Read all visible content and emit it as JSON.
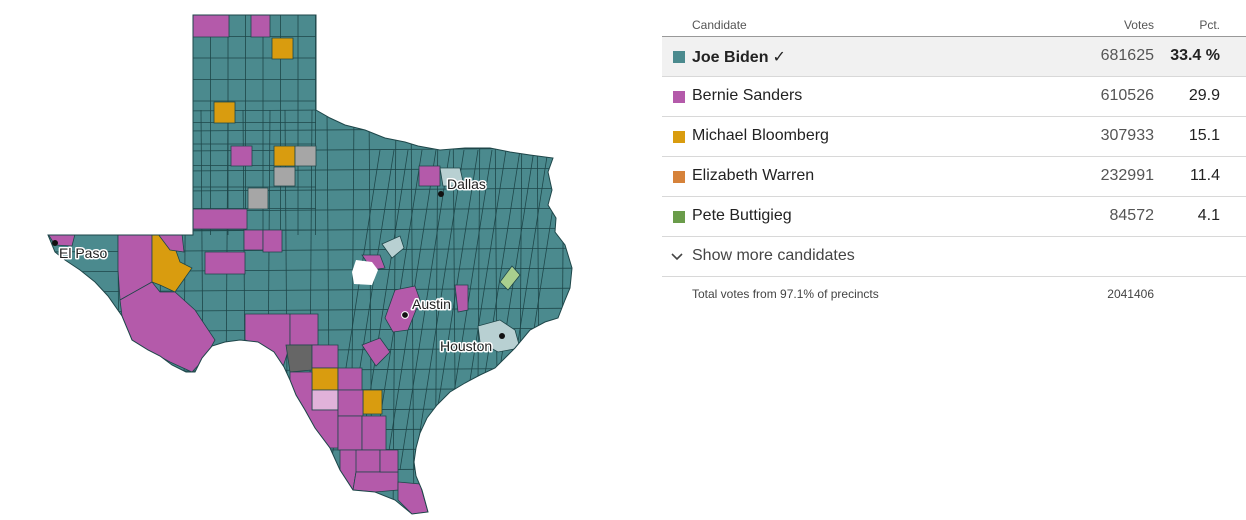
{
  "colors": {
    "biden": "#4b8a8e",
    "sanders": "#b45aaa",
    "bloomberg": "#d99c0f",
    "warren": "#d6823a",
    "buttigieg": "#6a9c4a",
    "biden_light": "#b8d0d2",
    "sanders_light": "#e1b2da",
    "buttigieg_light": "#a9cf8e",
    "tie": "#a6a6a6",
    "no_results": "#666666",
    "county_border": "#1e4649"
  },
  "map": {
    "cities": [
      "El Paso",
      "Dallas",
      "Austin",
      "Houston"
    ]
  },
  "table": {
    "headers": {
      "candidate": "Candidate",
      "votes": "Votes",
      "pct": "Pct."
    },
    "candidates": [
      {
        "name": "Joe Biden",
        "votes": "681625",
        "pct": "33.4 %",
        "color": "#4b8a8e",
        "winner": true,
        "check": "✓"
      },
      {
        "name": "Bernie Sanders",
        "votes": "610526",
        "pct": "29.9",
        "color": "#b45aaa"
      },
      {
        "name": "Michael Bloomberg",
        "votes": "307933",
        "pct": "15.1",
        "color": "#d99c0f"
      },
      {
        "name": "Elizabeth Warren",
        "votes": "232991",
        "pct": "11.4",
        "color": "#d6823a"
      },
      {
        "name": "Pete Buttigieg",
        "votes": "84572",
        "pct": "4.1",
        "color": "#6a9c4a"
      }
    ],
    "show_more": "Show more candidates",
    "show_more_icon": "chevron-down-icon",
    "footer": {
      "text": "Total votes from 97.1% of precincts",
      "total": "2041406"
    }
  }
}
